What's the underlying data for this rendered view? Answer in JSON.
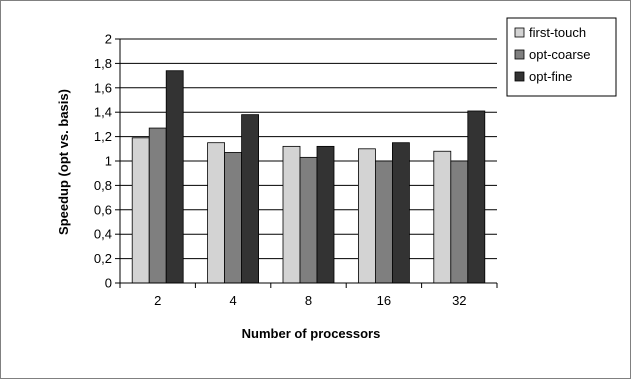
{
  "chart_data": {
    "type": "bar",
    "categories": [
      "2",
      "4",
      "8",
      "16",
      "32"
    ],
    "series": [
      {
        "name": "first-touch",
        "color": "#d3d3d3",
        "values": [
          1.19,
          1.15,
          1.12,
          1.1,
          1.08
        ]
      },
      {
        "name": "opt-coarse",
        "color": "#7f7f7f",
        "values": [
          1.27,
          1.07,
          1.03,
          1.0,
          1.0
        ]
      },
      {
        "name": "opt-fine",
        "color": "#333333",
        "values": [
          1.74,
          1.38,
          1.12,
          1.15,
          1.41
        ]
      }
    ],
    "xlabel": "Number of processors",
    "ylabel": "Speedup (opt vs. basis)",
    "ylim": [
      0,
      2
    ],
    "yticks": [
      "0",
      "0,2",
      "0,4",
      "0,6",
      "0,8",
      "1",
      "1,2",
      "1,4",
      "1,6",
      "1,8",
      "2"
    ],
    "grid": true,
    "legend_position": "top-right"
  }
}
